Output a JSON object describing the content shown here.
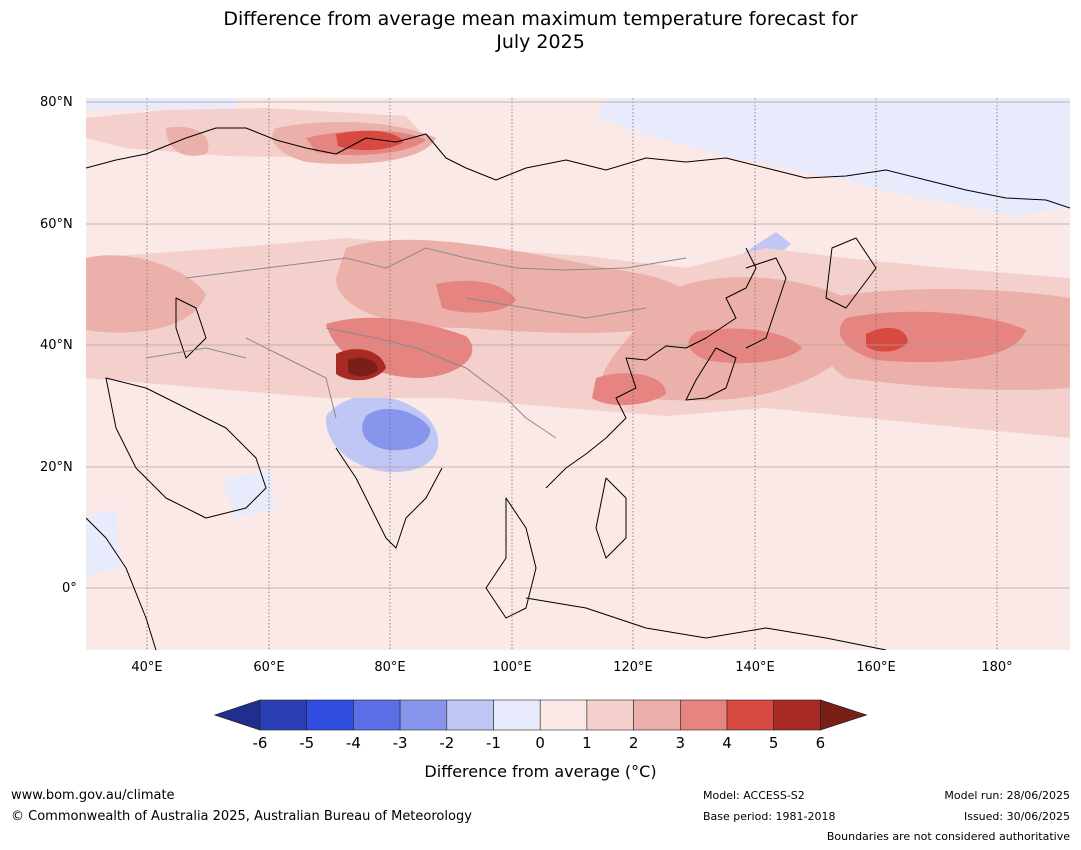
{
  "title": {
    "line1": "Difference from average mean maximum temperature forecast for",
    "line2": "July 2025"
  },
  "map": {
    "region": "Asia",
    "lat_labels": [
      "80°N",
      "60°N",
      "40°N",
      "20°N",
      "0°"
    ],
    "lon_labels": [
      "40°E",
      "60°E",
      "80°E",
      "100°E",
      "120°E",
      "140°E",
      "160°E",
      "180°"
    ],
    "background_color": "#fbe9e7",
    "anomalies": [
      {
        "name": "northern-india-cool",
        "value": "-3",
        "color": "#8796ec"
      },
      {
        "name": "western-china-hot",
        "value": "6",
        "color": "#7a1e18"
      },
      {
        "name": "north-pacific-warm",
        "value": "4",
        "color": "#d84a3f"
      },
      {
        "name": "arctic-russia-warm",
        "value": "4",
        "color": "#d84a3f"
      },
      {
        "name": "east-siberia-cool",
        "value": "-1",
        "color": "#e8ebfb"
      }
    ]
  },
  "colorbar": {
    "ticks": [
      "-6",
      "-5",
      "-4",
      "-3",
      "-2",
      "-1",
      "0",
      "1",
      "2",
      "3",
      "4",
      "5",
      "6"
    ],
    "colors": [
      "#1f2f8f",
      "#2a3fb3",
      "#2f4ee0",
      "#5a6fe5",
      "#8796ec",
      "#c0c7f5",
      "#e8ebfb",
      "#fbe9e7",
      "#f4d0cc",
      "#ecb0aa",
      "#e58480",
      "#d84a3f",
      "#a72b24",
      "#7a1e18"
    ],
    "label": "Difference from average (°C)"
  },
  "footer": {
    "website": "www.bom.gov.au/climate",
    "copyright": "© Commonwealth of Australia 2025, Australian Bureau of Meteorology",
    "model": "Model: ACCESS-S2",
    "base_period": "Base period: 1981-2018",
    "model_run": "Model run: 28/06/2025",
    "issued": "Issued: 30/06/2025",
    "disclaimer": "Boundaries are not considered authoritative"
  }
}
